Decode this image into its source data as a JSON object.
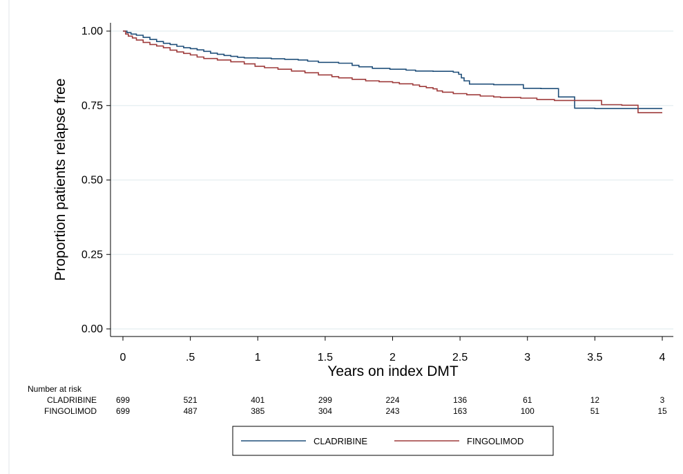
{
  "chart_data": {
    "type": "line",
    "title": "",
    "xlabel": "Years on index DMT",
    "ylabel": "Proportion patients relapse free",
    "xlim": [
      0,
      4
    ],
    "ylim": [
      0,
      1
    ],
    "grid": true,
    "x_ticks": [
      0,
      0.5,
      1,
      1.5,
      2,
      2.5,
      3,
      3.5,
      4
    ],
    "x_tick_labels": [
      "0",
      ".5",
      "1",
      "1.5",
      "2",
      "2.5",
      "3",
      "3.5",
      "4"
    ],
    "y_ticks": [
      0,
      0.25,
      0.5,
      0.75,
      1
    ],
    "y_tick_labels": [
      "0.00",
      "0.25",
      "0.50",
      "0.75",
      "1.00"
    ],
    "legend_position": "bottom",
    "series": [
      {
        "name": "CLADRIBINE",
        "color": "#1f4e79",
        "steps": [
          [
            0,
            1.0
          ],
          [
            0.03,
            0.995
          ],
          [
            0.06,
            0.99
          ],
          [
            0.1,
            0.986
          ],
          [
            0.15,
            0.979
          ],
          [
            0.2,
            0.972
          ],
          [
            0.25,
            0.965
          ],
          [
            0.3,
            0.959
          ],
          [
            0.35,
            0.955
          ],
          [
            0.4,
            0.949
          ],
          [
            0.45,
            0.944
          ],
          [
            0.5,
            0.941
          ],
          [
            0.55,
            0.937
          ],
          [
            0.6,
            0.932
          ],
          [
            0.65,
            0.926
          ],
          [
            0.7,
            0.922
          ],
          [
            0.75,
            0.918
          ],
          [
            0.8,
            0.915
          ],
          [
            0.85,
            0.912
          ],
          [
            0.9,
            0.91
          ],
          [
            1.0,
            0.909
          ],
          [
            1.1,
            0.907
          ],
          [
            1.2,
            0.905
          ],
          [
            1.3,
            0.903
          ],
          [
            1.37,
            0.899
          ],
          [
            1.45,
            0.895
          ],
          [
            1.6,
            0.892
          ],
          [
            1.7,
            0.885
          ],
          [
            1.75,
            0.88
          ],
          [
            1.85,
            0.875
          ],
          [
            1.98,
            0.872
          ],
          [
            2.1,
            0.869
          ],
          [
            2.17,
            0.866
          ],
          [
            2.3,
            0.865
          ],
          [
            2.45,
            0.862
          ],
          [
            2.49,
            0.855
          ],
          [
            2.51,
            0.843
          ],
          [
            2.53,
            0.833
          ],
          [
            2.57,
            0.822
          ],
          [
            2.75,
            0.82
          ],
          [
            2.97,
            0.808
          ],
          [
            3.1,
            0.807
          ],
          [
            3.23,
            0.779
          ],
          [
            3.35,
            0.741
          ],
          [
            3.5,
            0.74
          ],
          [
            4.0,
            0.74
          ]
        ]
      },
      {
        "name": "FINGOLIMOD",
        "color": "#9e3a3a",
        "steps": [
          [
            0,
            1.0
          ],
          [
            0.02,
            0.99
          ],
          [
            0.04,
            0.983
          ],
          [
            0.07,
            0.977
          ],
          [
            0.1,
            0.97
          ],
          [
            0.15,
            0.962
          ],
          [
            0.2,
            0.955
          ],
          [
            0.25,
            0.95
          ],
          [
            0.3,
            0.944
          ],
          [
            0.35,
            0.936
          ],
          [
            0.4,
            0.93
          ],
          [
            0.45,
            0.925
          ],
          [
            0.5,
            0.92
          ],
          [
            0.55,
            0.913
          ],
          [
            0.6,
            0.908
          ],
          [
            0.7,
            0.903
          ],
          [
            0.8,
            0.897
          ],
          [
            0.9,
            0.89
          ],
          [
            0.98,
            0.882
          ],
          [
            1.05,
            0.877
          ],
          [
            1.15,
            0.872
          ],
          [
            1.25,
            0.866
          ],
          [
            1.35,
            0.86
          ],
          [
            1.45,
            0.853
          ],
          [
            1.55,
            0.847
          ],
          [
            1.6,
            0.843
          ],
          [
            1.7,
            0.838
          ],
          [
            1.8,
            0.833
          ],
          [
            1.9,
            0.83
          ],
          [
            2.0,
            0.827
          ],
          [
            2.05,
            0.823
          ],
          [
            2.15,
            0.819
          ],
          [
            2.2,
            0.814
          ],
          [
            2.25,
            0.81
          ],
          [
            2.3,
            0.806
          ],
          [
            2.33,
            0.799
          ],
          [
            2.37,
            0.795
          ],
          [
            2.45,
            0.79
          ],
          [
            2.55,
            0.786
          ],
          [
            2.65,
            0.782
          ],
          [
            2.75,
            0.779
          ],
          [
            2.8,
            0.777
          ],
          [
            2.95,
            0.775
          ],
          [
            3.07,
            0.77
          ],
          [
            3.2,
            0.767
          ],
          [
            3.35,
            0.767
          ],
          [
            3.45,
            0.767
          ],
          [
            3.55,
            0.753
          ],
          [
            3.7,
            0.751
          ],
          [
            3.82,
            0.726
          ],
          [
            4.0,
            0.726
          ]
        ]
      }
    ],
    "risk_table": {
      "header": "Number at risk",
      "times": [
        0,
        0.5,
        1,
        1.5,
        2,
        2.5,
        3,
        3.5,
        4
      ],
      "rows": [
        {
          "label": "CLADRIBINE",
          "values": [
            "699",
            "521",
            "401",
            "299",
            "224",
            "136",
            "61",
            "12",
            "3"
          ]
        },
        {
          "label": "FINGOLIMOD",
          "values": [
            "699",
            "487",
            "385",
            "304",
            "243",
            "163",
            "100",
            "51",
            "15"
          ]
        }
      ]
    }
  }
}
